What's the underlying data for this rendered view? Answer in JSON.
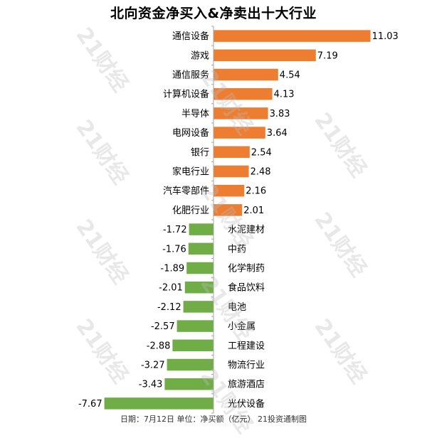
{
  "title": "北向资金净买入&净卖出十大行业",
  "footer": "日期：7月12日 单位：净买额（亿元） 21投资通制图",
  "watermark": "21财经",
  "colors": {
    "positive": "#ED7D31",
    "negative": "#70AD47",
    "axis": "#A6A6A6",
    "text": "#000000"
  },
  "chart_data": {
    "type": "bar",
    "orientation": "horizontal",
    "title": "北向资金净买入&净卖出十大行业",
    "xlabel": "",
    "ylabel": "",
    "xlim": [
      -7.67,
      11.03
    ],
    "grid": false,
    "legend": "none",
    "categories": [
      "通信设备",
      "游戏",
      "通信服务",
      "计算机设备",
      "半导体",
      "电网设备",
      "银行",
      "家电行业",
      "汽车零部件",
      "化肥行业",
      "水泥建材",
      "中药",
      "化学制药",
      "食品饮料",
      "电池",
      "小金属",
      "工程建设",
      "物流行业",
      "旅游酒店",
      "光伏设备"
    ],
    "values": [
      11.03,
      7.19,
      4.54,
      4.13,
      3.83,
      3.64,
      2.54,
      2.48,
      2.16,
      2.01,
      -1.72,
      -1.76,
      -1.89,
      -2.01,
      -2.12,
      -2.57,
      -2.88,
      -3.27,
      -3.43,
      -7.67
    ],
    "value_labels": [
      "11.03",
      "7.19",
      "4.54",
      "4.13",
      "3.83",
      "3.64",
      "2.54",
      "2.48",
      "2.16",
      "2.01",
      "-1.72",
      "-1.76",
      "-1.89",
      "-2.01",
      "-2.12",
      "-2.57",
      "-2.88",
      "-3.27",
      "-3.43",
      "-7.67"
    ]
  }
}
